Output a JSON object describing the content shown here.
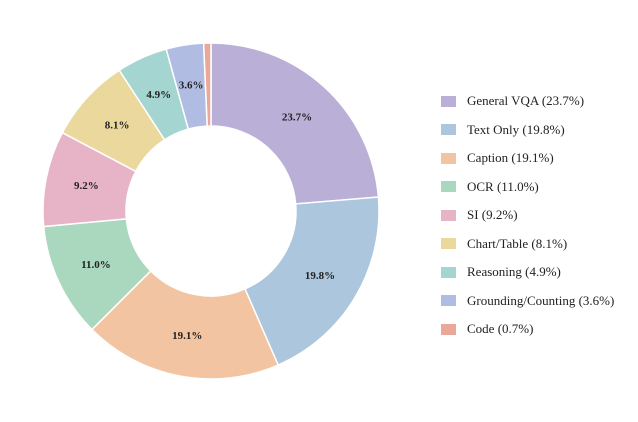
{
  "chart_data": {
    "type": "pie",
    "style": "donut",
    "title": "",
    "legend_position": "right",
    "slices": [
      {
        "label": "General VQA",
        "value": 23.7,
        "value_label": "23.7%",
        "legend": "General VQA (23.7%)",
        "color": "#b9afd7"
      },
      {
        "label": "Text Only",
        "value": 19.8,
        "value_label": "19.8%",
        "legend": "Text Only (19.8%)",
        "color": "#abc6dd"
      },
      {
        "label": "Caption",
        "value": 19.1,
        "value_label": "19.1%",
        "legend": "Caption (19.1%)",
        "color": "#f2c4a1"
      },
      {
        "label": "OCR",
        "value": 11.0,
        "value_label": "11.0%",
        "legend": "OCR (11.0%)",
        "color": "#a9d8be"
      },
      {
        "label": "SI",
        "value": 9.2,
        "value_label": "9.2%",
        "legend": "SI (9.2%)",
        "color": "#e7b3c6"
      },
      {
        "label": "Chart/Table",
        "value": 8.1,
        "value_label": "8.1%",
        "legend": "Chart/Table (8.1%)",
        "color": "#ead89d"
      },
      {
        "label": "Reasoning",
        "value": 4.9,
        "value_label": "4.9%",
        "legend": "Reasoning (4.9%)",
        "color": "#a4d5d1"
      },
      {
        "label": "Grounding/Counting",
        "value": 3.6,
        "value_label": "3.6%",
        "legend": "Grounding/Counting (3.6%)",
        "color": "#b1bce2"
      },
      {
        "label": "Code",
        "value": 0.7,
        "value_label": "",
        "legend": "Code (0.7%)",
        "color": "#eaa89b"
      }
    ]
  }
}
